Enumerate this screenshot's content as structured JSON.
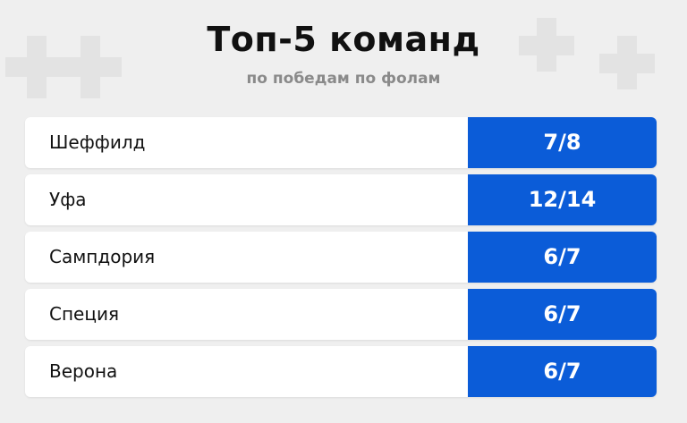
{
  "header": {
    "title": "Топ-5 команд",
    "subtitle": "по победам по фолам"
  },
  "rows": [
    {
      "team": "Шеффилд",
      "value": "7/8"
    },
    {
      "team": "Уфа",
      "value": "12/14"
    },
    {
      "team": "Сампдория",
      "value": "6/7"
    },
    {
      "team": "Специя",
      "value": "6/7"
    },
    {
      "team": "Верона",
      "value": "6/7"
    }
  ],
  "colors": {
    "accent": "#0b5cd8",
    "background": "#efefef",
    "card": "#ffffff",
    "title": "#111111",
    "subtitle": "#8a8a8a"
  }
}
